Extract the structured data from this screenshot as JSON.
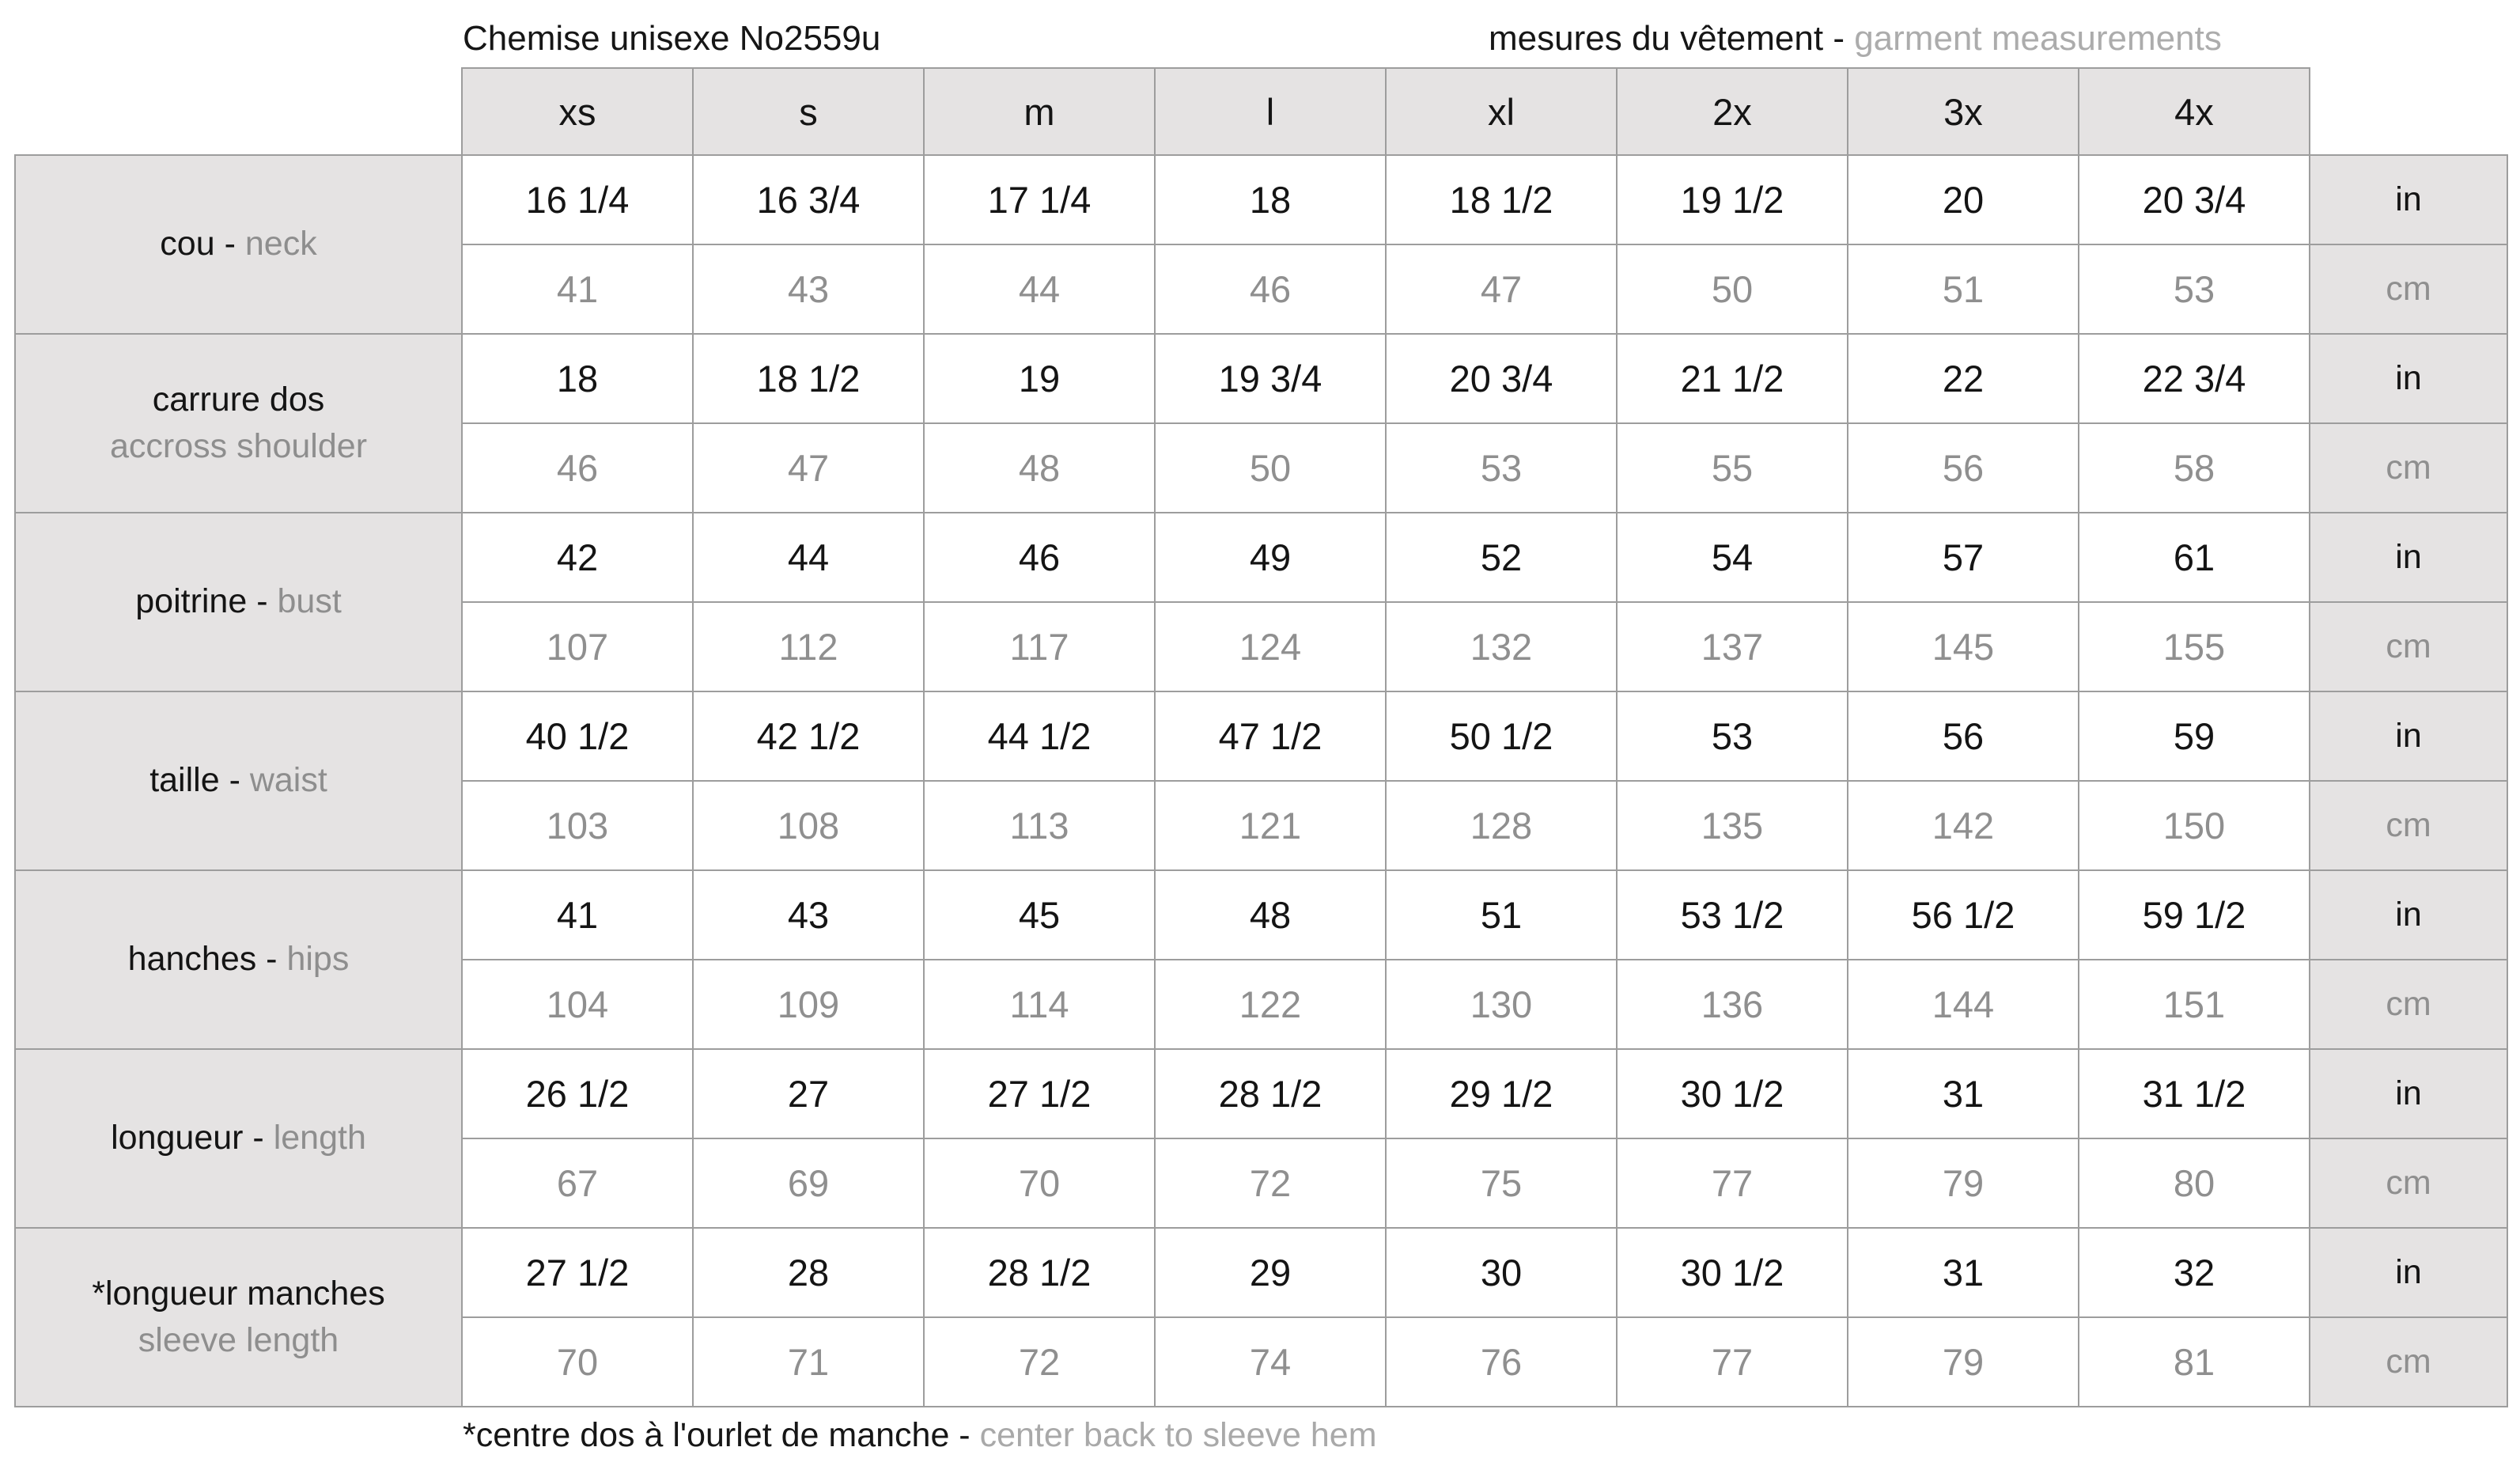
{
  "header": {
    "title_left": "Chemise unisexe No2559u",
    "title_right_fr": "mesures du vêtement",
    "title_right_sep": " - ",
    "title_right_en": "garment measurements"
  },
  "chart_data": {
    "type": "table",
    "title": "Chemise unisexe No2559u — mesures du vêtement / garment measurements",
    "size_columns": [
      "xs",
      "s",
      "m",
      "l",
      "xl",
      "2x",
      "3x",
      "4x"
    ],
    "unit_labels": {
      "in": "in",
      "cm": "cm"
    },
    "label_separator": " - ",
    "rows": [
      {
        "label_fr": "cou",
        "label_en": "neck",
        "two_line": false,
        "in": [
          "16 1/4",
          "16 3/4",
          "17 1/4",
          "18",
          "18 1/2",
          "19 1/2",
          "20",
          "20 3/4"
        ],
        "cm": [
          "41",
          "43",
          "44",
          "46",
          "47",
          "50",
          "51",
          "53"
        ]
      },
      {
        "label_fr": "carrure dos",
        "label_en": "accross shoulder",
        "two_line": true,
        "in": [
          "18",
          "18 1/2",
          "19",
          "19 3/4",
          "20 3/4",
          "21 1/2",
          "22",
          "22 3/4"
        ],
        "cm": [
          "46",
          "47",
          "48",
          "50",
          "53",
          "55",
          "56",
          "58"
        ]
      },
      {
        "label_fr": "poitrine",
        "label_en": "bust",
        "two_line": false,
        "in": [
          "42",
          "44",
          "46",
          "49",
          "52",
          "54",
          "57",
          "61"
        ],
        "cm": [
          "107",
          "112",
          "117",
          "124",
          "132",
          "137",
          "145",
          "155"
        ]
      },
      {
        "label_fr": "taille",
        "label_en": "waist",
        "two_line": false,
        "in": [
          "40 1/2",
          "42 1/2",
          "44 1/2",
          "47 1/2",
          "50 1/2",
          "53",
          "56",
          "59"
        ],
        "cm": [
          "103",
          "108",
          "113",
          "121",
          "128",
          "135",
          "142",
          "150"
        ]
      },
      {
        "label_fr": "hanches",
        "label_en": "hips",
        "two_line": false,
        "in": [
          "41",
          "43",
          "45",
          "48",
          "51",
          "53 1/2",
          "56 1/2",
          "59 1/2"
        ],
        "cm": [
          "104",
          "109",
          "114",
          "122",
          "130",
          "136",
          "144",
          "151"
        ]
      },
      {
        "label_fr": "longueur",
        "label_en": "length",
        "two_line": false,
        "in": [
          "26 1/2",
          "27",
          "27 1/2",
          "28 1/2",
          "29 1/2",
          "30 1/2",
          "31",
          "31 1/2"
        ],
        "cm": [
          "67",
          "69",
          "70",
          "72",
          "75",
          "77",
          "79",
          "80"
        ]
      },
      {
        "label_fr": "*longueur manches",
        "label_en": "sleeve length",
        "two_line": true,
        "in": [
          "27 1/2",
          "28",
          "28 1/2",
          "29",
          "30",
          "30 1/2",
          "31",
          "32"
        ],
        "cm": [
          "70",
          "71",
          "72",
          "74",
          "76",
          "77",
          "79",
          "81"
        ]
      }
    ]
  },
  "footnote": {
    "fr": "*centre dos à l'ourlet de manche",
    "sep": " - ",
    "en": "center back to sleeve hem"
  },
  "colors": {
    "cell_gray_bg": "#e5e3e3",
    "border_gray": "#9d9d9d",
    "text_black": "#141414",
    "value_gray": "#8f8f8f",
    "english_gray": "#acacac"
  }
}
